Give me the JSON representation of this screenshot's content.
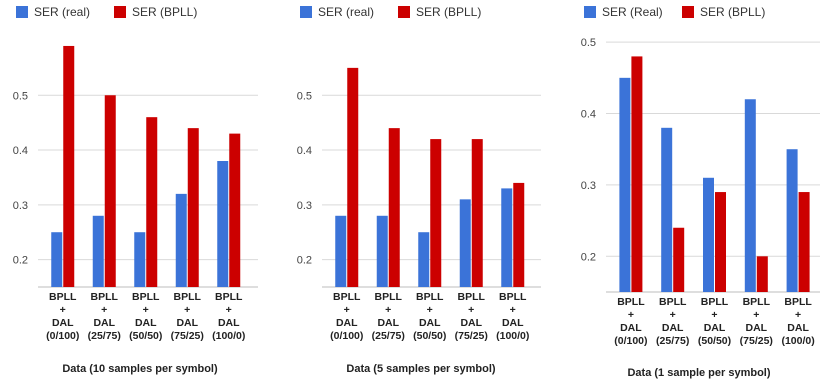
{
  "chart_data": [
    {
      "type": "bar",
      "xlabel": "Data (10 samples per symbol)",
      "categories": [
        "BPLL\n+\nDAL\n(0/100)",
        "BPLL\n+\nDAL\n(25/75)",
        "BPLL\n+\nDAL\n(50/50)",
        "BPLL\n+\nDAL\n(75/25)",
        "BPLL\n+\nDAL\n(100/0)"
      ],
      "series": [
        {
          "name": "SER (real)",
          "color": "#3b73d8",
          "values": [
            0.25,
            0.28,
            0.25,
            0.32,
            0.38
          ]
        },
        {
          "name": "SER (BPLL)",
          "color": "#cc0000",
          "values": [
            0.59,
            0.5,
            0.46,
            0.44,
            0.43
          ]
        }
      ],
      "ylim": [
        0.15,
        0.61
      ],
      "yticks": [
        0.2,
        0.3,
        0.4,
        0.5
      ],
      "ytick_labels": [
        "0.2",
        "0.3",
        "0.4",
        "0.5"
      ],
      "grid": true,
      "legend": "top-left"
    },
    {
      "type": "bar",
      "xlabel": "Data (5 samples per symbol)",
      "categories": [
        "BPLL\n+\nDAL\n(0/100)",
        "BPLL\n+\nDAL\n(25/75)",
        "BPLL\n+\nDAL\n(50/50)",
        "BPLL\n+\nDAL\n(75/25)",
        "BPLL\n+\nDAL\n(100/0)"
      ],
      "series": [
        {
          "name": "SER (real)",
          "color": "#3b73d8",
          "values": [
            0.28,
            0.28,
            0.25,
            0.31,
            0.33
          ]
        },
        {
          "name": "SER (BPLL)",
          "color": "#cc0000",
          "values": [
            0.55,
            0.44,
            0.42,
            0.42,
            0.34
          ]
        }
      ],
      "ylim": [
        0.15,
        0.61
      ],
      "yticks": [
        0.2,
        0.3,
        0.4,
        0.5
      ],
      "ytick_labels": [
        "0.2",
        "0.3",
        "0.4",
        "0.5"
      ],
      "grid": true,
      "legend": "top-left"
    },
    {
      "type": "bar",
      "xlabel": "Data (1 sample per symbol)",
      "categories": [
        "BPLL\n+\nDAL\n(0/100)",
        "BPLL\n+\nDAL\n(25/75)",
        "BPLL\n+\nDAL\n(50/50)",
        "BPLL\n+\nDAL\n(75/25)",
        "BPLL\n+\nDAL\n(100/0)"
      ],
      "series": [
        {
          "name": "SER (Real)",
          "color": "#3b73d8",
          "values": [
            0.45,
            0.38,
            0.31,
            0.42,
            0.35
          ]
        },
        {
          "name": "SER (BPLL)",
          "color": "#cc0000",
          "values": [
            0.48,
            0.24,
            0.29,
            0.2,
            0.29
          ]
        }
      ],
      "ylim": [
        0.15,
        0.51
      ],
      "yticks": [
        0.2,
        0.3,
        0.4,
        0.5
      ],
      "ytick_labels": [
        "0.2",
        "0.3",
        "0.4",
        "0.5"
      ],
      "grid": true,
      "legend": "top-left"
    }
  ]
}
